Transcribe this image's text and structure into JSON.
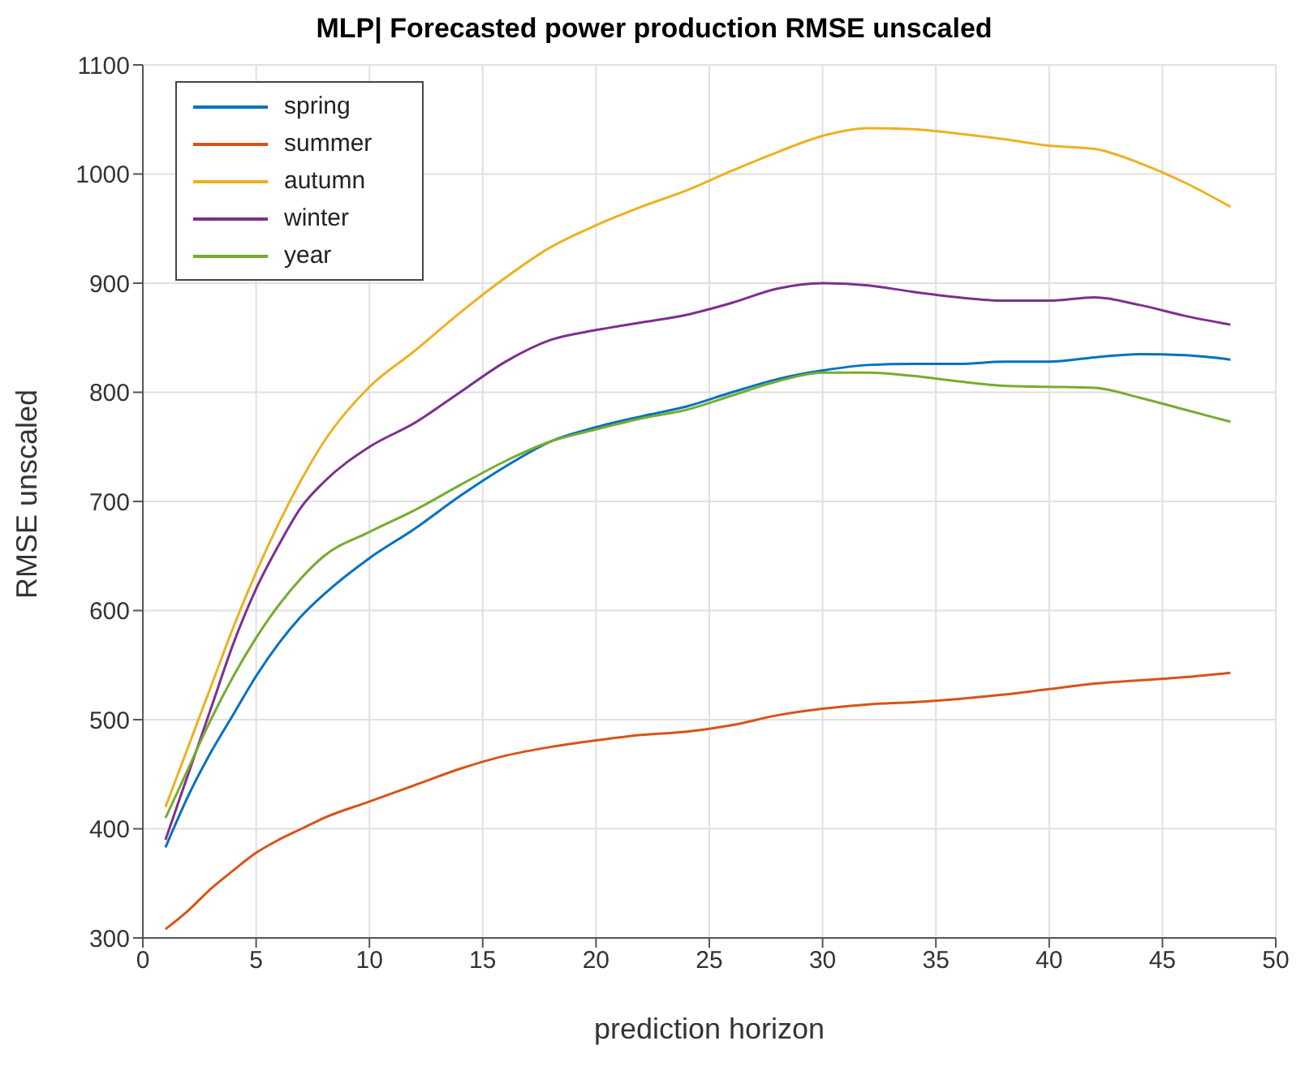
{
  "chart_data": {
    "type": "line",
    "title": "MLP| Forecasted power production RMSE unscaled",
    "xlabel": "prediction horizon",
    "ylabel": "RMSE unscaled",
    "x": [
      1,
      2,
      3,
      4,
      5,
      6,
      7,
      8,
      10,
      12,
      14,
      16,
      18,
      20,
      22,
      24,
      26,
      28,
      30,
      32,
      34,
      36,
      38,
      40,
      42,
      44,
      46,
      48
    ],
    "series": [
      {
        "name": "spring",
        "color": "#0072bd",
        "values": [
          383,
          430,
          470,
          505,
          540,
          570,
          595,
          615,
          648,
          675,
          705,
          732,
          755,
          768,
          778,
          787,
          800,
          812,
          820,
          825,
          826,
          826,
          828,
          828,
          832,
          835,
          834,
          830
        ]
      },
      {
        "name": "summer",
        "color": "#d95319",
        "values": [
          308,
          325,
          345,
          362,
          378,
          390,
          400,
          410,
          425,
          440,
          455,
          467,
          475,
          481,
          486,
          489,
          495,
          504,
          510,
          514,
          516,
          519,
          523,
          528,
          533,
          536,
          539,
          543
        ]
      },
      {
        "name": "autumn",
        "color": "#edb120",
        "values": [
          420,
          475,
          530,
          585,
          635,
          680,
          720,
          755,
          805,
          838,
          873,
          905,
          933,
          953,
          970,
          985,
          1003,
          1020,
          1035,
          1042,
          1041,
          1037,
          1032,
          1026,
          1023,
          1010,
          992,
          970
        ]
      },
      {
        "name": "winter",
        "color": "#7e2f8e",
        "values": [
          390,
          450,
          510,
          570,
          620,
          660,
          695,
          718,
          750,
          772,
          800,
          828,
          848,
          857,
          864,
          871,
          882,
          895,
          900,
          898,
          892,
          887,
          884,
          884,
          887,
          880,
          870,
          862
        ]
      },
      {
        "name": "year",
        "color": "#77ac30",
        "values": [
          410,
          455,
          500,
          540,
          575,
          605,
          630,
          650,
          672,
          692,
          715,
          737,
          755,
          766,
          776,
          784,
          797,
          810,
          818,
          818,
          815,
          810,
          806,
          805,
          804,
          795,
          784,
          773
        ]
      }
    ],
    "xlim": [
      0,
      50
    ],
    "xticks": [
      0,
      5,
      10,
      15,
      20,
      25,
      30,
      35,
      40,
      45,
      50
    ],
    "ylim": [
      300,
      1100
    ],
    "yticks": [
      300,
      400,
      500,
      600,
      700,
      800,
      900,
      1000,
      1100
    ],
    "grid": true,
    "legend": "top left",
    "marker": "none",
    "line_style": "solid"
  }
}
